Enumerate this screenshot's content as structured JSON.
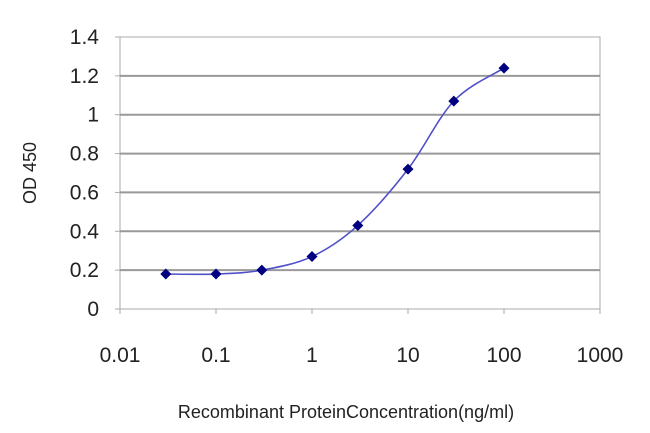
{
  "chart_data": {
    "type": "line",
    "xlabel": "Recombinant ProteinConcentration(ng/ml)",
    "ylabel": "OD 450",
    "xscale": "log",
    "xlim": [
      0.01,
      1000
    ],
    "ylim": [
      0,
      1.4
    ],
    "x_tick_labels": [
      "0.01",
      "0.1",
      "1",
      "10",
      "100",
      "1000"
    ],
    "y_tick_labels": [
      "0",
      "0.2",
      "0.4",
      "0.6",
      "0.8",
      "1",
      "1.2",
      "1.4"
    ],
    "grid": "horizontal",
    "legend": "none",
    "series": [
      {
        "x": [
          0.03,
          0.1,
          0.3,
          1,
          3,
          10,
          30,
          100
        ],
        "y": [
          0.18,
          0.18,
          0.2,
          0.27,
          0.43,
          0.72,
          1.07,
          1.24
        ],
        "color": "#000080",
        "line_color": "#5050c8",
        "marker": "diamond"
      }
    ],
    "colors": {
      "grid": "#999999",
      "frame": "#aaaaaa",
      "text": "#222222"
    }
  }
}
